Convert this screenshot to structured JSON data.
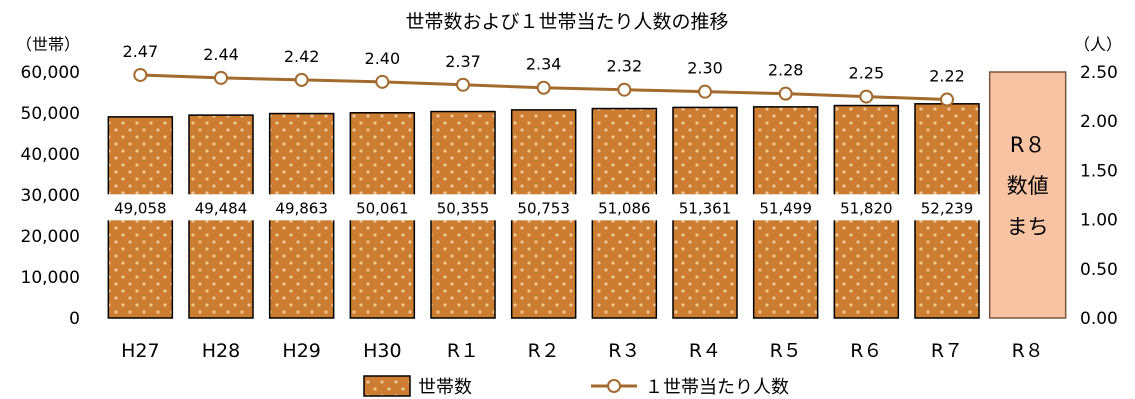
{
  "chart_data": {
    "type": "bar",
    "title": "世帯数および１世帯当たり人数の推移",
    "categories": [
      "H27",
      "H28",
      "H29",
      "H30",
      "R１",
      "R２",
      "R３",
      "R４",
      "R５",
      "R６",
      "R７",
      "R８"
    ],
    "series": [
      {
        "name": "世帯数",
        "type": "bar",
        "axis": "left",
        "values": [
          49058,
          49484,
          49863,
          50061,
          50355,
          50753,
          51086,
          51361,
          51499,
          51820,
          52239,
          null
        ],
        "labels": [
          "49,058",
          "49,484",
          "49,863",
          "50,061",
          "50,355",
          "50,753",
          "51,086",
          "51,361",
          "51,499",
          "51,820",
          "52,239",
          ""
        ]
      },
      {
        "name": "１世帯当たり人数",
        "type": "line",
        "axis": "right",
        "values": [
          2.47,
          2.44,
          2.42,
          2.4,
          2.37,
          2.34,
          2.32,
          2.3,
          2.28,
          2.25,
          2.22,
          null
        ],
        "labels": [
          "2.47",
          "2.44",
          "2.42",
          "2.40",
          "2.37",
          "2.34",
          "2.32",
          "2.30",
          "2.28",
          "2.25",
          "2.22",
          ""
        ]
      }
    ],
    "y_left": {
      "unit_label": "（世帯）",
      "ylim": [
        0,
        60000
      ],
      "ticks": [
        0,
        10000,
        20000,
        30000,
        40000,
        50000,
        60000
      ],
      "tick_labels": [
        "0",
        "10,000",
        "20,000",
        "30,000",
        "40,000",
        "50,000",
        "60,000"
      ]
    },
    "y_right": {
      "unit_label": "（人）",
      "ylim": [
        0,
        2.5
      ],
      "ticks": [
        0,
        0.5,
        1.0,
        1.5,
        2.0,
        2.5
      ],
      "tick_labels": [
        "0.00",
        "0.50",
        "1.00",
        "1.50",
        "2.00",
        "2.50"
      ]
    },
    "placeholder": {
      "category": "R８",
      "lines": [
        "R８",
        "数値",
        "まち"
      ]
    },
    "legend": {
      "position": "bottom",
      "entries": [
        "世帯数",
        "１世帯当たり人数"
      ]
    },
    "grid": false,
    "colors": {
      "bar_fill": "#cc7d31",
      "bar_stroke": "#000000",
      "bar_dot": "#f0c896",
      "line": "#a36a2e",
      "marker_fill": "#ffffff",
      "placeholder_fill": "#f8c3a3",
      "placeholder_stroke": "#7a5540",
      "label_box": "#ffffff"
    }
  }
}
